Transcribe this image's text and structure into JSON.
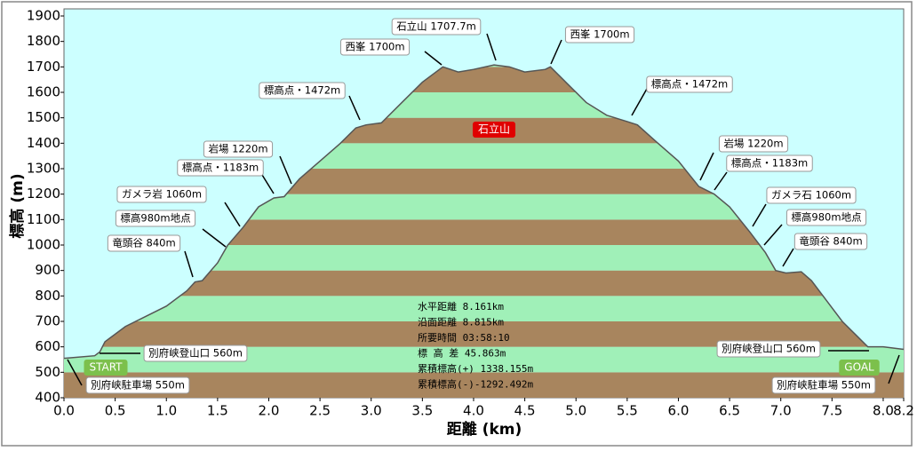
{
  "chart_data": {
    "type": "area",
    "x_label": "距離 (km)",
    "y_label": "標高 (m)",
    "x": [
      0.0,
      0.3,
      0.35,
      0.4,
      0.6,
      0.8,
      1.0,
      1.2,
      1.28,
      1.35,
      1.5,
      1.6,
      1.75,
      1.9,
      2.05,
      2.15,
      2.3,
      2.5,
      2.7,
      2.85,
      2.95,
      3.1,
      3.3,
      3.5,
      3.7,
      3.85,
      4.0,
      4.2,
      4.35,
      4.5,
      4.7,
      4.75,
      4.9,
      5.1,
      5.3,
      5.5,
      5.6,
      5.8,
      6.0,
      6.2,
      6.35,
      6.5,
      6.7,
      6.85,
      6.95,
      7.05,
      7.2,
      7.3,
      7.45,
      7.6,
      7.75,
      7.85,
      8.0,
      8.2
    ],
    "series": [
      {
        "color": "#555555",
        "values": [
          555,
          565,
          580,
          620,
          680,
          720,
          760,
          820,
          855,
          860,
          930,
          1000,
          1070,
          1150,
          1185,
          1190,
          1260,
          1330,
          1400,
          1460,
          1472,
          1480,
          1560,
          1640,
          1700,
          1680,
          1690,
          1707.7,
          1700,
          1680,
          1690,
          1700,
          1640,
          1560,
          1510,
          1485,
          1472,
          1400,
          1330,
          1230,
          1200,
          1150,
          1050,
          970,
          900,
          890,
          895,
          860,
          780,
          700,
          640,
          600,
          600,
          590
        ]
      }
    ],
    "band_colors": [
      "#a8855e",
      "#a0f0b8"
    ],
    "background": "#ccffff",
    "xlim": [
      0.0,
      8.2
    ],
    "ylim": [
      400,
      1900
    ],
    "xticks": [
      {
        "value": 0.0,
        "label": "0.0"
      },
      {
        "value": 0.5,
        "label": "0.5"
      },
      {
        "value": 1.0,
        "label": "1.0"
      },
      {
        "value": 1.5,
        "label": "1.5"
      },
      {
        "value": 2.0,
        "label": "2.0"
      },
      {
        "value": 2.5,
        "label": "2.5"
      },
      {
        "value": 3.0,
        "label": "3.0"
      },
      {
        "value": 3.5,
        "label": "3.5"
      },
      {
        "value": 4.0,
        "label": "4.0"
      },
      {
        "value": 4.5,
        "label": "4.5"
      },
      {
        "value": 5.0,
        "label": "5.0"
      },
      {
        "value": 5.5,
        "label": "5.5"
      },
      {
        "value": 6.0,
        "label": "6.0"
      },
      {
        "value": 6.5,
        "label": "6.5"
      },
      {
        "value": 7.0,
        "label": "7.0"
      },
      {
        "value": 7.5,
        "label": "7.5"
      },
      {
        "value": 8.0,
        "label": "8.0"
      },
      {
        "value": 8.2,
        "label": "8.2"
      }
    ],
    "yticks": [
      400,
      500,
      600,
      700,
      800,
      900,
      1000,
      1100,
      1200,
      1300,
      1400,
      1500,
      1600,
      1700,
      1800,
      1900
    ],
    "annotations": [
      "別府峡登山口 560m",
      "別府峡駐車場 550m",
      "竜頭谷 840m",
      "標高980m地点",
      "ガメラ岩 1060m",
      "標高点・1183m",
      "岩場 1220m",
      "標高点・1472m",
      "西峯 1700m",
      "石立山 1707.7m",
      "西峯 1700m",
      "標高点・1472m",
      "岩場 1220m",
      "標高点・1183m",
      "ガメラ石 1060m",
      "標高980m地点",
      "竜頭谷 840m",
      "別府峡登山口 560m",
      "別府峡駐車場 550m"
    ],
    "peak_badge": "石立山",
    "start_badge": "START",
    "goal_badge": "GOAL",
    "stats": [
      "水平距離 8.161km",
      "沿面距離 8.815km",
      "所要時間 03:58:10",
      "標 高 差 45.863m",
      "累積標高(+) 1338.155m",
      "累積標高(-)-1292.492m"
    ]
  }
}
